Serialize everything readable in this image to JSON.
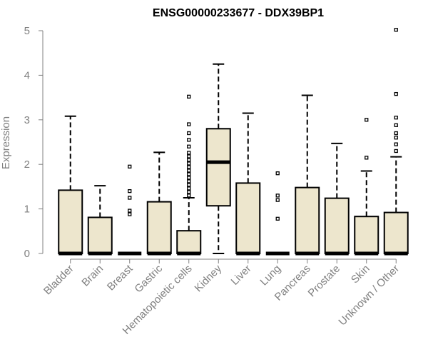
{
  "chart_data": {
    "type": "box",
    "title": "ENSG00000233677 - DDX39BP1",
    "xlabel": "",
    "ylabel": "Expression",
    "ylim": [
      0,
      5
    ],
    "yticks": [
      0,
      1,
      2,
      3,
      4,
      5
    ],
    "box_fill": "#ede6cd",
    "box_stroke": "#000000",
    "categories": [
      "Bladder",
      "Brain",
      "Breast",
      "Gastric",
      "Hematopoietic cells",
      "Kidney",
      "Liver",
      "Lung",
      "Pancreas",
      "Prostate",
      "Skin",
      "Unknown / Other"
    ],
    "boxes": [
      {
        "category": "Bladder",
        "min": 0,
        "q1": 0,
        "median": 0,
        "q3": 1.42,
        "max": 3.08,
        "outliers": []
      },
      {
        "category": "Brain",
        "min": 0,
        "q1": 0,
        "median": 0,
        "q3": 0.81,
        "max": 1.52,
        "outliers": []
      },
      {
        "category": "Breast",
        "min": 0,
        "q1": 0,
        "median": 0,
        "q3": 0,
        "max": 0,
        "outliers": [
          0.88,
          0.96,
          1.25,
          1.4,
          1.95
        ]
      },
      {
        "category": "Gastric",
        "min": 0,
        "q1": 0,
        "median": 0,
        "q3": 1.16,
        "max": 2.27,
        "outliers": []
      },
      {
        "category": "Hematopoietic cells",
        "min": 0,
        "q1": 0,
        "median": 0,
        "q3": 0.51,
        "max": 1.25,
        "outliers": [
          1.3,
          1.38,
          1.46,
          1.54,
          1.62,
          1.7,
          1.78,
          1.86,
          1.94,
          2.02,
          2.1,
          2.18,
          2.26,
          2.4,
          2.55,
          2.7,
          2.9,
          3.52
        ]
      },
      {
        "category": "Kidney",
        "min": 0,
        "q1": 1.07,
        "median": 2.05,
        "q3": 2.8,
        "max": 4.25,
        "outliers": []
      },
      {
        "category": "Liver",
        "min": 0,
        "q1": 0,
        "median": 0,
        "q3": 1.58,
        "max": 3.15,
        "outliers": []
      },
      {
        "category": "Lung",
        "min": 0,
        "q1": 0,
        "median": 0,
        "q3": 0,
        "max": 0,
        "outliers": [
          0.78,
          1.2,
          1.3,
          1.8
        ]
      },
      {
        "category": "Pancreas",
        "min": 0,
        "q1": 0,
        "median": 0,
        "q3": 1.48,
        "max": 3.55,
        "outliers": []
      },
      {
        "category": "Prostate",
        "min": 0,
        "q1": 0,
        "median": 0,
        "q3": 1.24,
        "max": 2.47,
        "outliers": []
      },
      {
        "category": "Skin",
        "min": 0,
        "q1": 0,
        "median": 0,
        "q3": 0.83,
        "max": 1.85,
        "outliers": [
          2.15,
          3.0
        ]
      },
      {
        "category": "Unknown / Other",
        "min": 0,
        "q1": 0,
        "median": 0,
        "q3": 0.92,
        "max": 2.17,
        "outliers": [
          2.3,
          2.45,
          2.6,
          2.7,
          2.88,
          3.05,
          3.58,
          5.02
        ]
      }
    ]
  }
}
